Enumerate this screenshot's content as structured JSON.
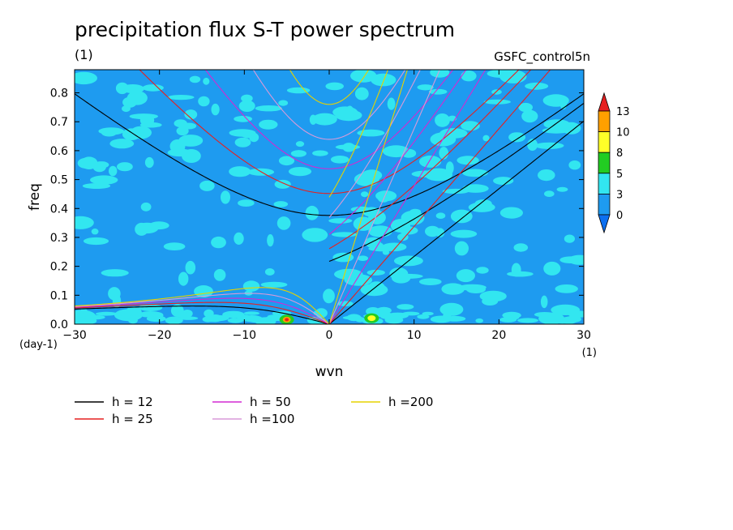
{
  "header": {
    "title": "precipitation flux S-T power spectrum",
    "subtitle": "(1)",
    "source": "GSFC_control5n"
  },
  "chart_data": {
    "type": "heatmap",
    "title": "precipitation flux S-T power spectrum",
    "xlabel": "wvn",
    "ylabel": "freq",
    "x_unit_label": "(1)",
    "y_unit_label": "(day-1)",
    "xlim": [
      -30,
      30
    ],
    "ylim": [
      0,
      0.88
    ],
    "x_ticks": [
      -30,
      -20,
      -10,
      0,
      10,
      20,
      30
    ],
    "y_ticks": [
      0.0,
      0.1,
      0.2,
      0.3,
      0.4,
      0.5,
      0.6,
      0.7,
      0.8
    ],
    "colorbar": {
      "levels": [
        0,
        3,
        5,
        8,
        10,
        13
      ],
      "colors": [
        "#0c6ff0",
        "#1e9bf0",
        "#32e6f0",
        "#22cc22",
        "#ffff28",
        "#ffa000",
        "#e62020"
      ]
    },
    "background_level_color": "#1e9bf0",
    "dispersion_curves": [
      {
        "name": "h = 12",
        "h": 12,
        "color": "#000000"
      },
      {
        "name": "h = 25",
        "h": 25,
        "color": "#e62020"
      },
      {
        "name": "h = 50",
        "h": 50,
        "color": "#d22ad2"
      },
      {
        "name": "h =100",
        "h": 100,
        "color": "#d89ad8"
      },
      {
        "name": "h =200",
        "h": 200,
        "color": "#e6d200"
      }
    ],
    "hot_spots": [
      {
        "wvn": -5,
        "freq": 0.01,
        "level": 8
      },
      {
        "wvn": 5,
        "freq": 0.015,
        "level": 5
      }
    ]
  }
}
